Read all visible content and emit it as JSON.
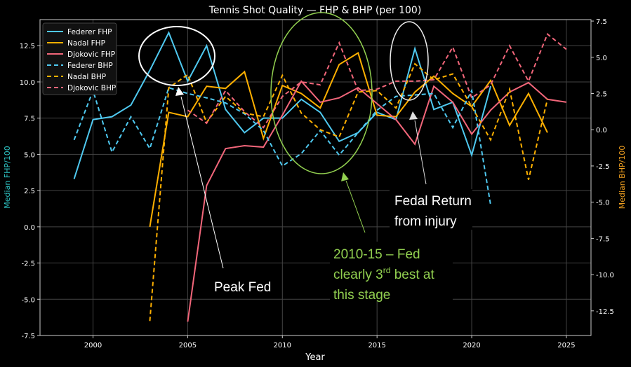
{
  "chart_data": {
    "type": "line",
    "title": "Tennis Shot Quality — FHP & BHP (per 100)",
    "xlabel": "Year",
    "ylabel_left": "Median FHP/100",
    "ylabel_right": "Median BHP/100",
    "xlim": [
      1997.2,
      2026.3
    ],
    "ylim_left": [
      -7.5,
      14.3
    ],
    "ylim_right": [
      -14.2,
      7.6
    ],
    "x_ticks": [
      2000,
      2005,
      2010,
      2015,
      2020,
      2025
    ],
    "y_ticks_left": [
      "-7.5",
      "-5.0",
      "-2.5",
      "0.0",
      "2.5",
      "5.0",
      "7.5",
      "10.0",
      "12.5"
    ],
    "y_ticks_right": [
      "-12.5",
      "-10.0",
      "-7.5",
      "-5.0",
      "-2.5",
      "0.0",
      "2.5",
      "5.0",
      "7.5"
    ],
    "grid": true,
    "legend_position": "top-left",
    "series": [
      {
        "name": "Federer FHP",
        "axis": "left",
        "style": "solid",
        "color": "#4fc9f0",
        "x": [
          1999,
          2000,
          2001,
          2002,
          2003,
          2004,
          2005,
          2006,
          2007,
          2008,
          2009,
          2010,
          2011,
          2012,
          2013,
          2014,
          2015,
          2016,
          2017,
          2018,
          2019,
          2020,
          2021
        ],
        "y": [
          3.3,
          7.4,
          7.6,
          8.4,
          10.8,
          13.4,
          10.05,
          12.5,
          8.1,
          6.5,
          7.5,
          7.5,
          8.8,
          7.9,
          5.9,
          6.5,
          7.9,
          7.4,
          12.3,
          8.1,
          8.6,
          4.95,
          9.7
        ]
      },
      {
        "name": "Nadal FHP",
        "axis": "left",
        "style": "solid",
        "color": "#ffb000",
        "x": [
          2003,
          2004,
          2005,
          2006,
          2007,
          2008,
          2009,
          2010,
          2011,
          2012,
          2013,
          2014,
          2015,
          2016,
          2017,
          2018,
          2019,
          2020,
          2021,
          2022,
          2023,
          2024
        ],
        "y": [
          0.0,
          7.9,
          7.6,
          9.7,
          9.55,
          10.7,
          6.1,
          9.75,
          9.2,
          8.2,
          11.2,
          12.0,
          7.7,
          7.6,
          9.3,
          10.4,
          9.2,
          8.3,
          10.1,
          7.0,
          9.2,
          6.5
        ]
      },
      {
        "name": "Djokovic FHP",
        "axis": "left",
        "style": "solid",
        "color": "#f2667a",
        "x": [
          2005,
          2006,
          2007,
          2008,
          2009,
          2010,
          2011,
          2012,
          2013,
          2014,
          2015,
          2016,
          2017,
          2018,
          2019,
          2020,
          2021,
          2022,
          2023,
          2024,
          2025
        ],
        "y": [
          -6.55,
          2.85,
          5.4,
          5.6,
          5.5,
          7.7,
          10.05,
          8.6,
          8.9,
          9.6,
          8.5,
          7.4,
          5.7,
          9.7,
          8.6,
          6.4,
          8.05,
          9.3,
          9.95,
          8.8,
          8.6
        ]
      },
      {
        "name": "Federer BHP",
        "axis": "right",
        "style": "dashed",
        "color": "#4fc9f0",
        "x": [
          1999,
          2000,
          2001,
          2002,
          2003,
          2004,
          2005,
          2006,
          2007,
          2008,
          2009,
          2010,
          2011,
          2012,
          2013,
          2014,
          2015,
          2016,
          2017,
          2018,
          2019,
          2020,
          2021
        ],
        "y": [
          -0.7,
          2.7,
          -1.55,
          0.9,
          -1.3,
          2.9,
          2.5,
          2.2,
          1.85,
          1.1,
          -0.05,
          -2.5,
          -1.65,
          -0.05,
          -1.75,
          -0.2,
          1.35,
          2.3,
          2.4,
          2.5,
          0.15,
          2.7,
          -5.2
        ]
      },
      {
        "name": "Nadal BHP",
        "axis": "right",
        "style": "dashed",
        "color": "#ffb000",
        "x": [
          2003,
          2004,
          2005,
          2006,
          2007,
          2008,
          2009,
          2010,
          2011,
          2012,
          2013,
          2014,
          2015,
          2016,
          2017,
          2018,
          2019,
          2020,
          2021,
          2022,
          2023,
          2024
        ],
        "y": [
          -13.2,
          2.9,
          3.8,
          0.5,
          2.3,
          1.15,
          0.9,
          3.75,
          1.15,
          0.0,
          -0.5,
          2.6,
          2.7,
          1.5,
          4.55,
          3.45,
          3.85,
          1.6,
          -0.7,
          2.8,
          -3.45,
          2.1
        ]
      },
      {
        "name": "Djokovic BHP",
        "axis": "right",
        "style": "dashed",
        "color": "#f2667a",
        "x": [
          2005,
          2006,
          2007,
          2008,
          2009,
          2010,
          2011,
          2012,
          2013,
          2014,
          2015,
          2016,
          2017,
          2018,
          2019,
          2020,
          2021,
          2022,
          2023,
          2024,
          2025
        ],
        "y": [
          1.35,
          0.45,
          2.7,
          1.25,
          0.15,
          2.3,
          3.3,
          3.1,
          6.0,
          2.7,
          2.8,
          3.35,
          3.35,
          3.45,
          5.7,
          2.2,
          3.1,
          5.8,
          3.35,
          6.6,
          5.55
        ]
      }
    ],
    "annotations": {
      "peak_fed": "Peak Fed",
      "fedal_line1": "Fedal Return",
      "fedal_line2": "from injury",
      "fed3_line1": "2010-15 – Fed",
      "fed3_line2_pre": "clearly 3",
      "fed3_line2_sup": "rd",
      "fed3_line2_post": " best at",
      "fed3_line3": "this stage"
    }
  }
}
